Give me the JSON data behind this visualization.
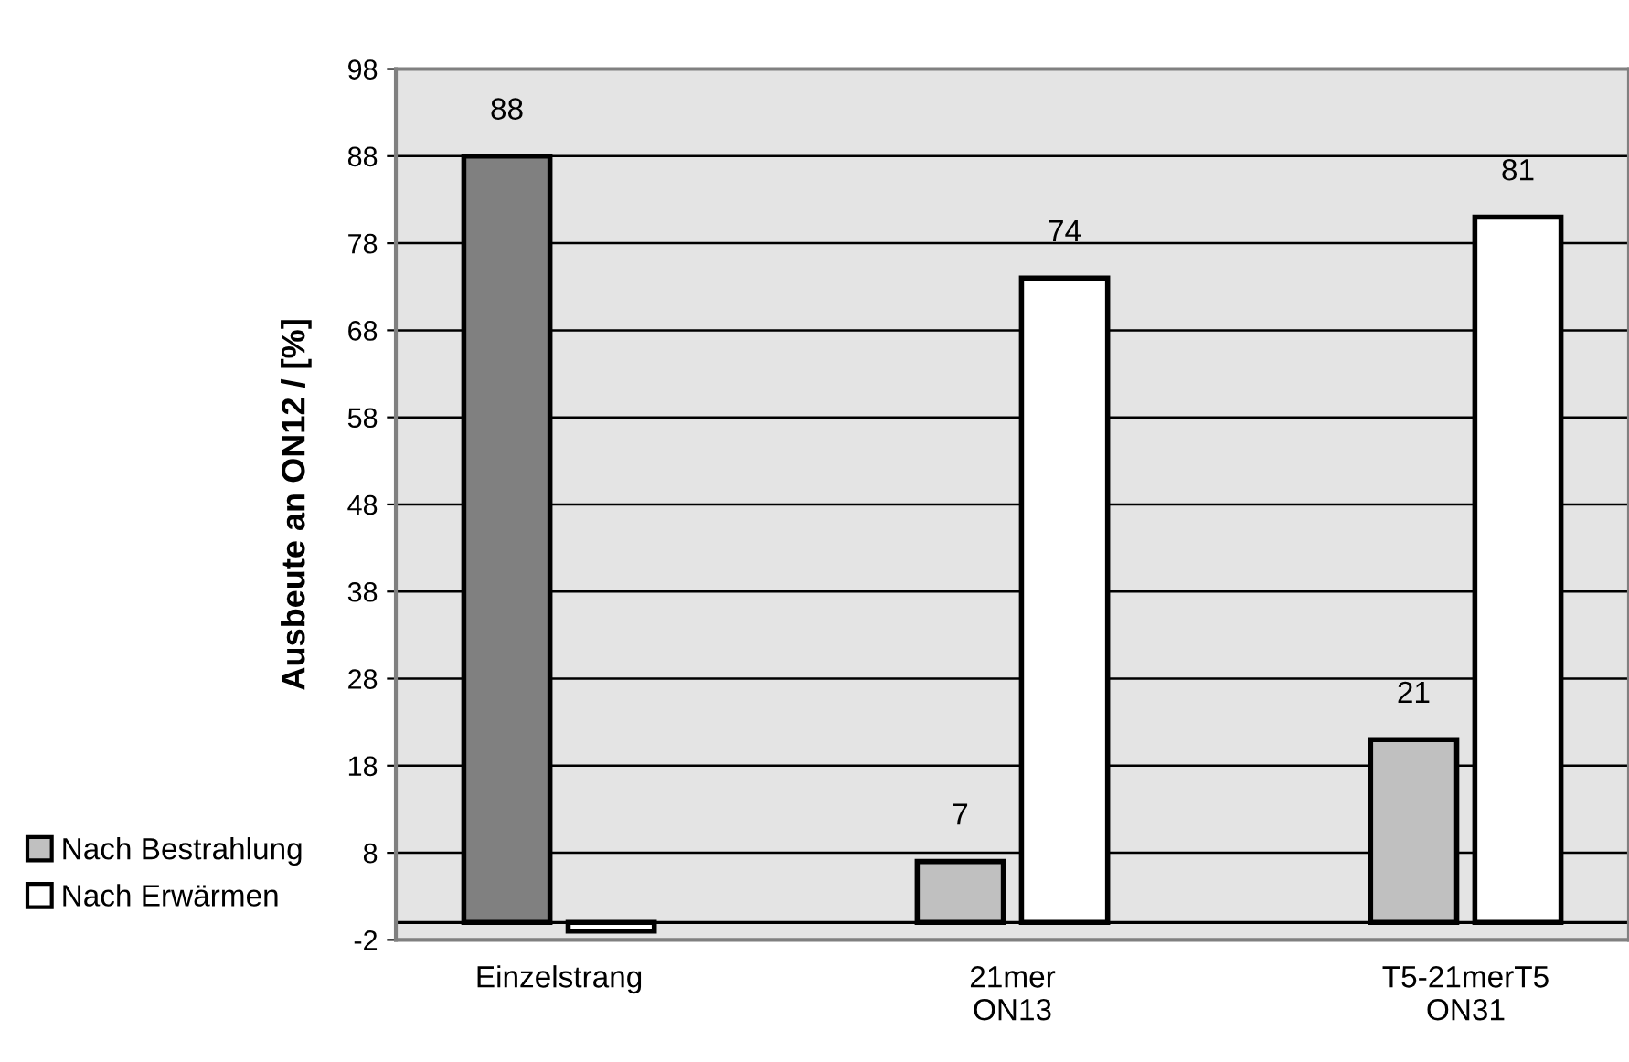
{
  "chart_data": {
    "type": "bar",
    "ylabel": "Ausbeute an ON12 / [%]",
    "categories": [
      "Einzelstrang",
      "21mer\nON13",
      "T5-21merT5\nON31"
    ],
    "series": [
      {
        "name": "Nach Bestrahlung",
        "color": "#c0c0c0",
        "colors": [
          "#808080",
          "#c0c0c0",
          "#c0c0c0"
        ],
        "values": [
          88,
          7,
          21
        ],
        "value_labels": [
          "88",
          "7",
          "21"
        ]
      },
      {
        "name": "Nach Erwärmen",
        "color": "#ffffff",
        "values": [
          -1,
          74,
          81
        ],
        "value_labels": [
          null,
          "74",
          "81"
        ]
      }
    ],
    "ylim": [
      -2,
      98
    ],
    "yticks": [
      -2,
      8,
      18,
      28,
      38,
      48,
      58,
      68,
      78,
      88,
      98
    ],
    "grid": "y",
    "legend": "bottom left",
    "ref_lines": [
      {
        "axis": "y",
        "value": 0,
        "color": "#000000"
      }
    ]
  }
}
